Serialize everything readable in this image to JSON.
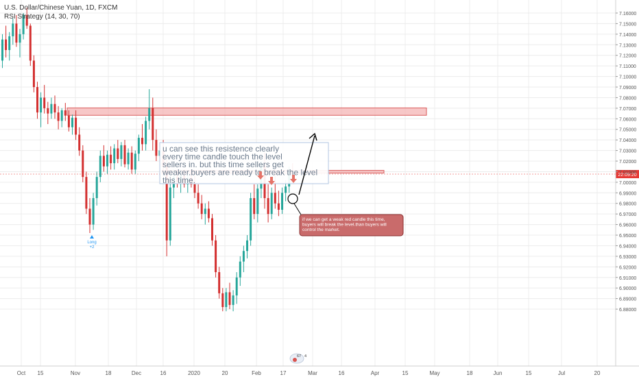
{
  "header": {
    "symbol": "U.S. Dollar/Chinese Yuan, 1D, FXCM",
    "indicator": "RSI Strategy (14, 30, 70)"
  },
  "price_label": "22:09:20",
  "signal_marker": {
    "line1": "Long",
    "line2": "+2"
  },
  "annotation_main": "u can see this resistence clearly every time candle touch the level sellers in. but this time sellers get weaker.buyers are ready to break the level this time.",
  "annotation_red": "if we can get a weak red candle this time, buyers will break the level.than buyers will control the market.",
  "badge": {
    "count1": "67",
    "count2": "4"
  },
  "colors": {
    "up": "#26a69a",
    "down": "#d32f2f",
    "zone_fill": "#f4b4b4",
    "zone_stroke": "#d95b5b",
    "axis_text": "#555555",
    "grid": "#ececec",
    "price_tag": "#e53935"
  },
  "chart_data": {
    "type": "candlestick",
    "title": "U.S. Dollar/Chinese Yuan, 1D, FXCM",
    "y_ticks": [
      "7.16000",
      "7.15000",
      "7.14000",
      "7.13000",
      "7.12000",
      "7.11000",
      "7.10000",
      "7.09000",
      "7.08000",
      "7.07000",
      "7.06000",
      "7.05000",
      "7.04000",
      "7.03000",
      "7.02000",
      "7.01000",
      "7.00000",
      "6.99000",
      "6.98000",
      "6.97000",
      "6.96000",
      "6.95000",
      "6.94000",
      "6.93000",
      "6.92000",
      "6.91000",
      "6.90000",
      "6.89000",
      "6.88000"
    ],
    "x_ticks": [
      "Oct",
      "15",
      "Nov",
      "18",
      "Dec",
      "16",
      "2020",
      "20",
      "Feb",
      "17",
      "Mar",
      "16",
      "Apr",
      "15",
      "May",
      "18",
      "Jun",
      "15",
      "Jul",
      "20"
    ],
    "ylim": [
      6.878,
      7.165
    ],
    "zones": [
      {
        "label": "upper resistance zone",
        "y_top": 7.0703,
        "y_bottom": 7.0633
      },
      {
        "label": "lower resistance zone",
        "y_top": 7.0112,
        "y_bottom": 7.0087
      }
    ],
    "current_price": 7.0077,
    "candles": [
      {
        "o": 7.115,
        "h": 7.14,
        "l": 7.108,
        "c": 7.135
      },
      {
        "o": 7.135,
        "h": 7.148,
        "l": 7.118,
        "c": 7.125
      },
      {
        "o": 7.125,
        "h": 7.142,
        "l": 7.115,
        "c": 7.138
      },
      {
        "o": 7.138,
        "h": 7.155,
        "l": 7.13,
        "c": 7.15
      },
      {
        "o": 7.15,
        "h": 7.158,
        "l": 7.128,
        "c": 7.132
      },
      {
        "o": 7.132,
        "h": 7.145,
        "l": 7.118,
        "c": 7.14
      },
      {
        "o": 7.14,
        "h": 7.16,
        "l": 7.135,
        "c": 7.158
      },
      {
        "o": 7.158,
        "h": 7.165,
        "l": 7.145,
        "c": 7.148
      },
      {
        "o": 7.148,
        "h": 7.15,
        "l": 7.11,
        "c": 7.115
      },
      {
        "o": 7.115,
        "h": 7.12,
        "l": 7.085,
        "c": 7.09
      },
      {
        "o": 7.09,
        "h": 7.095,
        "l": 7.06,
        "c": 7.066
      },
      {
        "o": 7.066,
        "h": 7.085,
        "l": 7.052,
        "c": 7.08
      },
      {
        "o": 7.08,
        "h": 7.092,
        "l": 7.065,
        "c": 7.07
      },
      {
        "o": 7.07,
        "h": 7.076,
        "l": 7.055,
        "c": 7.065
      },
      {
        "o": 7.065,
        "h": 7.08,
        "l": 7.06,
        "c": 7.074
      },
      {
        "o": 7.074,
        "h": 7.082,
        "l": 7.06,
        "c": 7.066
      },
      {
        "o": 7.066,
        "h": 7.072,
        "l": 7.05,
        "c": 7.058
      },
      {
        "o": 7.058,
        "h": 7.07,
        "l": 7.052,
        "c": 7.068
      },
      {
        "o": 7.068,
        "h": 7.075,
        "l": 7.058,
        "c": 7.063
      },
      {
        "o": 7.063,
        "h": 7.068,
        "l": 7.048,
        "c": 7.052
      },
      {
        "o": 7.052,
        "h": 7.064,
        "l": 7.045,
        "c": 7.061
      },
      {
        "o": 7.061,
        "h": 7.068,
        "l": 7.04,
        "c": 7.045
      },
      {
        "o": 7.045,
        "h": 7.052,
        "l": 7.025,
        "c": 7.03
      },
      {
        "o": 7.03,
        "h": 7.035,
        "l": 7.0,
        "c": 7.005
      },
      {
        "o": 7.005,
        "h": 7.01,
        "l": 6.97,
        "c": 6.975
      },
      {
        "o": 6.975,
        "h": 6.985,
        "l": 6.952,
        "c": 6.96
      },
      {
        "o": 6.96,
        "h": 6.99,
        "l": 6.955,
        "c": 6.985
      },
      {
        "o": 6.985,
        "h": 7.01,
        "l": 6.978,
        "c": 7.005
      },
      {
        "o": 7.005,
        "h": 7.03,
        "l": 7.0,
        "c": 7.025
      },
      {
        "o": 7.025,
        "h": 7.035,
        "l": 7.01,
        "c": 7.015
      },
      {
        "o": 7.015,
        "h": 7.03,
        "l": 7.008,
        "c": 7.026
      },
      {
        "o": 7.026,
        "h": 7.034,
        "l": 7.012,
        "c": 7.018
      },
      {
        "o": 7.018,
        "h": 7.036,
        "l": 7.012,
        "c": 7.032
      },
      {
        "o": 7.032,
        "h": 7.04,
        "l": 7.018,
        "c": 7.022
      },
      {
        "o": 7.022,
        "h": 7.038,
        "l": 7.015,
        "c": 7.035
      },
      {
        "o": 7.035,
        "h": 7.04,
        "l": 7.014,
        "c": 7.017
      },
      {
        "o": 7.017,
        "h": 7.032,
        "l": 7.012,
        "c": 7.028
      },
      {
        "o": 7.028,
        "h": 7.034,
        "l": 7.008,
        "c": 7.012
      },
      {
        "o": 7.012,
        "h": 7.03,
        "l": 7.008,
        "c": 7.027
      },
      {
        "o": 7.027,
        "h": 7.045,
        "l": 7.02,
        "c": 7.042
      },
      {
        "o": 7.042,
        "h": 7.055,
        "l": 7.03,
        "c": 7.036
      },
      {
        "o": 7.036,
        "h": 7.062,
        "l": 7.03,
        "c": 7.058
      },
      {
        "o": 7.058,
        "h": 7.088,
        "l": 7.05,
        "c": 7.07
      },
      {
        "o": 7.07,
        "h": 7.08,
        "l": 7.03,
        "c": 7.04
      },
      {
        "o": 7.04,
        "h": 7.05,
        "l": 7.02,
        "c": 7.025
      },
      {
        "o": 7.025,
        "h": 7.035,
        "l": 7.015,
        "c": 7.03
      },
      {
        "o": 7.03,
        "h": 7.04,
        "l": 7.01,
        "c": 7.015
      },
      {
        "o": 7.015,
        "h": 7.022,
        "l": 6.93,
        "c": 6.945
      },
      {
        "o": 6.945,
        "h": 7.0,
        "l": 6.94,
        "c": 6.995
      },
      {
        "o": 6.995,
        "h": 7.012,
        "l": 6.985,
        "c": 7.005
      },
      {
        "o": 7.005,
        "h": 7.012,
        "l": 6.995,
        "c": 7.0
      },
      {
        "o": 7.0,
        "h": 7.012,
        "l": 6.99,
        "c": 7.006
      },
      {
        "o": 7.006,
        "h": 7.012,
        "l": 6.995,
        "c": 6.998
      },
      {
        "o": 6.998,
        "h": 7.01,
        "l": 6.99,
        "c": 7.004
      },
      {
        "o": 7.004,
        "h": 7.012,
        "l": 6.995,
        "c": 6.998
      },
      {
        "o": 6.998,
        "h": 7.006,
        "l": 6.985,
        "c": 6.99
      },
      {
        "o": 6.99,
        "h": 6.998,
        "l": 6.975,
        "c": 6.98
      },
      {
        "o": 6.98,
        "h": 6.988,
        "l": 6.965,
        "c": 6.97
      },
      {
        "o": 6.97,
        "h": 6.98,
        "l": 6.96,
        "c": 6.975
      },
      {
        "o": 6.975,
        "h": 6.982,
        "l": 6.962,
        "c": 6.966
      },
      {
        "o": 6.966,
        "h": 6.97,
        "l": 6.94,
        "c": 6.945
      },
      {
        "o": 6.945,
        "h": 6.95,
        "l": 6.91,
        "c": 6.915
      },
      {
        "o": 6.915,
        "h": 6.92,
        "l": 6.89,
        "c": 6.895
      },
      {
        "o": 6.895,
        "h": 6.9,
        "l": 6.878,
        "c": 6.882
      },
      {
        "o": 6.882,
        "h": 6.9,
        "l": 6.878,
        "c": 6.896
      },
      {
        "o": 6.896,
        "h": 6.905,
        "l": 6.88,
        "c": 6.884
      },
      {
        "o": 6.884,
        "h": 6.898,
        "l": 6.878,
        "c": 6.893
      },
      {
        "o": 6.893,
        "h": 6.915,
        "l": 6.885,
        "c": 6.91
      },
      {
        "o": 6.91,
        "h": 6.93,
        "l": 6.902,
        "c": 6.925
      },
      {
        "o": 6.925,
        "h": 6.94,
        "l": 6.915,
        "c": 6.935
      },
      {
        "o": 6.935,
        "h": 6.95,
        "l": 6.928,
        "c": 6.945
      },
      {
        "o": 6.945,
        "h": 6.99,
        "l": 6.94,
        "c": 6.985
      },
      {
        "o": 6.985,
        "h": 6.998,
        "l": 6.965,
        "c": 6.97
      },
      {
        "o": 6.97,
        "h": 6.998,
        "l": 6.962,
        "c": 6.994
      },
      {
        "o": 6.994,
        "h": 7.02,
        "l": 6.985,
        "c": 7.015
      },
      {
        "o": 7.015,
        "h": 7.028,
        "l": 6.975,
        "c": 6.985
      },
      {
        "o": 6.985,
        "h": 6.998,
        "l": 6.962,
        "c": 6.97
      },
      {
        "o": 6.97,
        "h": 6.995,
        "l": 6.965,
        "c": 6.99
      },
      {
        "o": 6.99,
        "h": 7.012,
        "l": 6.975,
        "c": 6.98
      },
      {
        "o": 6.98,
        "h": 6.992,
        "l": 6.968,
        "c": 6.974
      },
      {
        "o": 6.974,
        "h": 6.995,
        "l": 6.97,
        "c": 6.99
      },
      {
        "o": 6.99,
        "h": 7.002,
        "l": 6.982,
        "c": 6.996
      },
      {
        "o": 6.996,
        "h": 7.015,
        "l": 6.99,
        "c": 7.01
      },
      {
        "o": 7.01,
        "h": 7.018,
        "l": 7.002,
        "c": 7.008
      }
    ]
  }
}
